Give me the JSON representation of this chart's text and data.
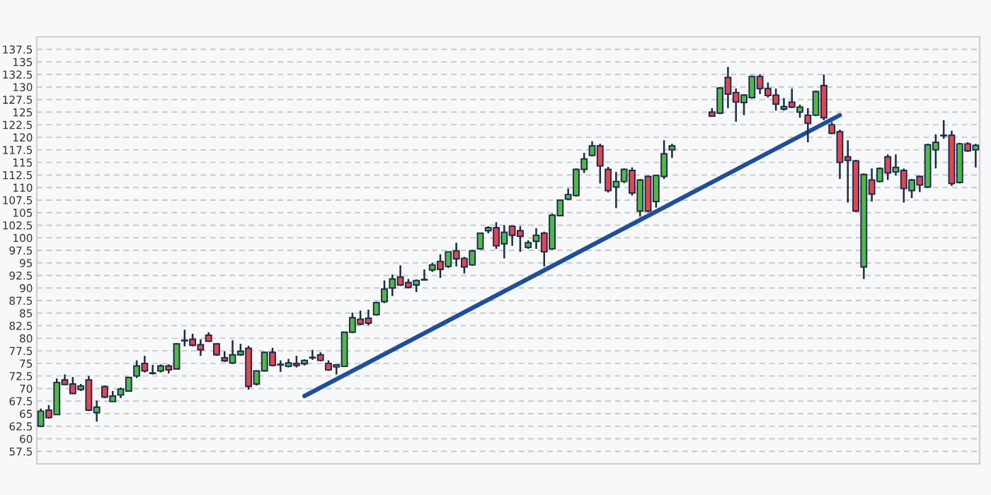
{
  "chart_data": {
    "type": "candlestick",
    "categories": [
      null,
      null,
      null,
      null,
      null,
      null,
      null,
      null,
      null,
      null,
      null,
      null,
      null,
      null,
      null,
      null,
      null,
      null,
      null,
      null,
      null,
      null,
      null,
      null,
      null,
      null,
      null,
      null,
      null,
      null,
      null,
      null,
      null,
      null,
      null,
      null,
      null,
      null,
      null,
      null,
      null,
      null,
      null,
      null,
      null,
      null,
      null,
      null,
      null,
      null,
      null,
      null,
      null,
      null,
      null,
      null,
      null,
      null,
      null,
      null,
      null,
      null,
      null,
      null,
      null,
      null,
      null,
      null,
      null,
      null,
      null,
      null,
      null,
      null,
      null,
      null,
      null,
      null,
      null,
      null,
      null,
      null,
      null,
      null,
      null,
      null,
      null,
      null,
      null,
      null,
      null,
      null,
      null,
      null,
      null,
      null,
      null,
      null,
      null,
      null,
      null,
      null,
      null,
      null,
      null,
      null,
      null,
      null,
      null,
      null,
      null,
      null,
      null,
      null,
      null,
      null,
      null,
      null
    ],
    "ohlc": [
      [
        62.5,
        66,
        62.3,
        65.5
      ],
      [
        65.7,
        66.7,
        64.0,
        64.2
      ],
      [
        64.8,
        72,
        64.8,
        71.2
      ],
      [
        71.7,
        72.8,
        70.8,
        70.8
      ],
      [
        70.9,
        72.3,
        68.9,
        69.0
      ],
      [
        69.8,
        70.9,
        69.5,
        70.5
      ],
      [
        71.7,
        72.5,
        65.5,
        65.7
      ],
      [
        65.2,
        67.6,
        63.4,
        66.3
      ],
      [
        70.4,
        70.6,
        68.1,
        68.3
      ],
      [
        67.4,
        69.5,
        67.4,
        68.5
      ],
      [
        68.7,
        70.2,
        68.1,
        69.9
      ],
      [
        69.5,
        72.3,
        69.4,
        72.2
      ],
      [
        72.5,
        75.6,
        72.1,
        74.5
      ],
      [
        75.0,
        76.5,
        73.2,
        73.5
      ],
      [
        73.1,
        74.7,
        72.8,
        73.0
      ],
      [
        73.5,
        74.8,
        73.2,
        74.5
      ],
      [
        74.5,
        74.8,
        73.0,
        73.7
      ],
      [
        73.9,
        79.0,
        73.8,
        78.9
      ],
      [
        79.5,
        81.7,
        78.4,
        79.6
      ],
      [
        79.8,
        80.9,
        78.4,
        78.6
      ],
      [
        78.7,
        79.8,
        76.5,
        77.7
      ],
      [
        80.6,
        81.2,
        79.3,
        79.4
      ],
      [
        78.9,
        79.0,
        76.5,
        76.7
      ],
      [
        76.1,
        77.4,
        75.3,
        75.5
      ],
      [
        75.1,
        79.6,
        74.9,
        76.7
      ],
      [
        76.7,
        78.9,
        76.5,
        77.4
      ],
      [
        78.0,
        78.5,
        69.8,
        70.4
      ],
      [
        70.9,
        73.6,
        70.6,
        73.5
      ],
      [
        73.5,
        77.3,
        73.4,
        77.2
      ],
      [
        77.2,
        78.1,
        74.4,
        74.6
      ],
      [
        74.8,
        75.6,
        73.3,
        74.7
      ],
      [
        74.4,
        75.9,
        74.2,
        75.1
      ],
      [
        75.0,
        76.5,
        74.2,
        74.6
      ],
      [
        74.9,
        75.8,
        74.6,
        75.6
      ],
      [
        76.1,
        77.7,
        75.7,
        76.2
      ],
      [
        76.7,
        77.2,
        75.4,
        75.6
      ],
      [
        75.0,
        75.6,
        73.5,
        73.7
      ],
      [
        74.3,
        74.8,
        72.8,
        74.7
      ],
      [
        74.4,
        81.3,
        74.3,
        81.2
      ],
      [
        81.2,
        85.1,
        81.0,
        84.1
      ],
      [
        83.8,
        85.5,
        82.6,
        82.8
      ],
      [
        84.0,
        85.7,
        82.6,
        83.0
      ],
      [
        84.7,
        87.3,
        84.5,
        87.1
      ],
      [
        87.3,
        91.5,
        87.0,
        89.8
      ],
      [
        90.0,
        92.7,
        88.4,
        91.8
      ],
      [
        92.2,
        94.5,
        90.4,
        90.6
      ],
      [
        91.1,
        91.8,
        89.9,
        90.1
      ],
      [
        90.6,
        91.7,
        89.2,
        91.5
      ],
      [
        91.6,
        93.7,
        91.5,
        91.7
      ],
      [
        93.6,
        95.0,
        93.2,
        94.6
      ],
      [
        95.3,
        96.7,
        92.0,
        93.7
      ],
      [
        94.3,
        97.2,
        94.0,
        97.2
      ],
      [
        97.4,
        99.0,
        94.3,
        95.8
      ],
      [
        95.9,
        96.2,
        92.9,
        94.2
      ],
      [
        94.6,
        97.6,
        94.4,
        97.4
      ],
      [
        97.8,
        101.0,
        97.6,
        100.9
      ],
      [
        101.4,
        102.3,
        100.9,
        102.0
      ],
      [
        102.0,
        103.1,
        97.8,
        98.4
      ],
      [
        98.8,
        102.5,
        95.9,
        101.1
      ],
      [
        102.3,
        102.5,
        98.4,
        100.5
      ],
      [
        101.4,
        102.3,
        97.2,
        100.3
      ],
      [
        98.1,
        99.5,
        97.8,
        99.0
      ],
      [
        99.3,
        101.9,
        97.8,
        100.5
      ],
      [
        100.9,
        101.2,
        94.3,
        97.2
      ],
      [
        97.8,
        104.8,
        97.6,
        104.5
      ],
      [
        104.4,
        107.6,
        104.3,
        107.5
      ],
      [
        107.7,
        109.8,
        107.5,
        108.6
      ],
      [
        108.4,
        113.8,
        108.2,
        113.6
      ],
      [
        113.6,
        116.9,
        112.9,
        115.7
      ],
      [
        116.4,
        119.2,
        116.2,
        118.3
      ],
      [
        118.3,
        118.7,
        110.8,
        114.3
      ],
      [
        113.6,
        114.1,
        109.0,
        109.4
      ],
      [
        110.1,
        113.1,
        105.9,
        111.2
      ],
      [
        111.2,
        113.8,
        110.9,
        113.6
      ],
      [
        113.4,
        114.0,
        108.4,
        108.9
      ],
      [
        105.3,
        111.7,
        104.2,
        111.5
      ],
      [
        112.2,
        112.4,
        105.1,
        105.3
      ],
      [
        107.2,
        112.5,
        106.0,
        112.4
      ],
      [
        112.2,
        119.4,
        111.7,
        116.7
      ],
      [
        117.5,
        118.7,
        115.9,
        118.3
      ],
      null,
      null,
      null,
      null,
      [
        125.0,
        125.8,
        124.1,
        124.2
      ],
      [
        124.8,
        130.0,
        124.6,
        129.8
      ],
      [
        131.9,
        134.0,
        125.8,
        128.6
      ],
      [
        128.9,
        129.7,
        123.1,
        127.0
      ],
      [
        126.9,
        128.6,
        124.4,
        128.4
      ],
      [
        127.9,
        132.3,
        127.7,
        132.1
      ],
      [
        132.1,
        132.5,
        128.6,
        129.7
      ],
      [
        129.7,
        130.9,
        127.9,
        128.3
      ],
      [
        128.4,
        129.7,
        125.3,
        126.6
      ],
      [
        125.6,
        127.8,
        125.3,
        126.1
      ],
      [
        127.0,
        129.7,
        125.8,
        126.0
      ],
      [
        125.0,
        126.5,
        123.9,
        126.0
      ],
      [
        124.4,
        125.8,
        119.0,
        122.8
      ],
      [
        124.4,
        129.3,
        124.2,
        129.1
      ],
      [
        130.3,
        132.5,
        123.4,
        123.9
      ],
      [
        122.5,
        123.0,
        120.6,
        120.8
      ],
      [
        121.1,
        121.5,
        111.7,
        115.0
      ],
      [
        116.1,
        119.4,
        107.0,
        115.4
      ],
      [
        115.3,
        115.5,
        105.1,
        105.3
      ],
      [
        94.2,
        112.8,
        91.8,
        112.6
      ],
      [
        111.5,
        113.8,
        107.2,
        108.7
      ],
      [
        111.2,
        114.0,
        111.0,
        113.8
      ],
      [
        116.1,
        116.6,
        111.5,
        112.9
      ],
      [
        113.1,
        116.6,
        112.4,
        114.0
      ],
      [
        113.4,
        113.8,
        107.0,
        109.8
      ],
      [
        109.4,
        111.7,
        107.9,
        111.5
      ],
      [
        112.2,
        112.4,
        109.1,
        110.5
      ],
      [
        110.1,
        118.7,
        109.9,
        118.5
      ],
      [
        117.5,
        120.6,
        113.8,
        119.0
      ],
      [
        120.3,
        123.4,
        119.7,
        120.4
      ],
      [
        120.4,
        121.3,
        110.3,
        110.8
      ],
      [
        111.0,
        118.9,
        110.8,
        118.7
      ],
      [
        118.7,
        119.0,
        117.1,
        117.3
      ],
      [
        117.5,
        118.7,
        114.0,
        118.4
      ]
    ],
    "colors": [
      "#52b848",
      "#e2474f",
      "#52b848",
      "#e2474f",
      "#e2474f",
      "#52b848",
      "#e2474f",
      "#52b848",
      "#e2474f",
      "#52b848",
      "#52b848",
      "#52b848",
      "#52b848",
      "#e2474f",
      "#e2474f",
      "#52b848",
      "#e2474f",
      "#52b848",
      "#52b848",
      "#e2474f",
      "#e2474f",
      "#e2474f",
      "#e2474f",
      "#e2474f",
      "#52b848",
      "#52b848",
      "#e2474f",
      "#52b848",
      "#52b848",
      "#e2474f",
      "#e2474f",
      "#52b848",
      "#e2474f",
      "#52b848",
      "#52b848",
      "#e2474f",
      "#e2474f",
      "#52b848",
      "#52b848",
      "#52b848",
      "#e2474f",
      "#e2474f",
      "#52b848",
      "#52b848",
      "#52b848",
      "#e2474f",
      "#e2474f",
      "#52b848",
      "#52b848",
      "#52b848",
      "#e2474f",
      "#52b848",
      "#e2474f",
      "#e2474f",
      "#52b848",
      "#52b848",
      "#52b848",
      "#e2474f",
      "#52b848",
      "#e2474f",
      "#e2474f",
      "#52b848",
      "#52b848",
      "#e2474f",
      "#52b848",
      "#52b848",
      "#52b848",
      "#52b848",
      "#52b848",
      "#52b848",
      "#e2474f",
      "#e2474f",
      "#52b848",
      "#52b848",
      "#e2474f",
      "#52b848",
      "#e2474f",
      "#52b848",
      "#52b848",
      "#52b848",
      null,
      null,
      null,
      null,
      "#e2474f",
      "#52b848",
      "#e2474f",
      "#e2474f",
      "#52b848",
      "#52b848",
      "#e2474f",
      "#e2474f",
      "#e2474f",
      "#52b848",
      "#e2474f",
      "#52b848",
      "#e2474f",
      "#52b848",
      "#e2474f",
      "#e2474f",
      "#e2474f",
      "#e2474f",
      "#e2474f",
      "#52b848",
      "#e2474f",
      "#52b848",
      "#e2474f",
      "#52b848",
      "#e2474f",
      "#52b848",
      "#e2474f",
      "#52b848",
      "#52b848",
      "#52b848",
      "#e2474f",
      "#52b848",
      "#e2474f",
      "#52b848"
    ],
    "series": [
      {
        "type": "line",
        "values": [
          null,
          null,
          null,
          null,
          null,
          null,
          null,
          null,
          null,
          null,
          null,
          null,
          null,
          null,
          null,
          null,
          null,
          null,
          null,
          null,
          null,
          null,
          null,
          null,
          null,
          null,
          null,
          null,
          null,
          null,
          null,
          null,
          null,
          68.5,
          null,
          null,
          null,
          null,
          null,
          null,
          null,
          null,
          null,
          null,
          null,
          null,
          null,
          null,
          null,
          null,
          null,
          null,
          null,
          null,
          null,
          null,
          null,
          null,
          null,
          null,
          null,
          null,
          null,
          null,
          null,
          null,
          null,
          null,
          null,
          null,
          null,
          null,
          null,
          null,
          null,
          null,
          null,
          null,
          null,
          null,
          null,
          null,
          null,
          null,
          null,
          null,
          null,
          null,
          null,
          null,
          null,
          null,
          null,
          null,
          null,
          null,
          null,
          null,
          null,
          null,
          124.4,
          null,
          null,
          null,
          null,
          null,
          null,
          null,
          null,
          null,
          null,
          null,
          null,
          null,
          null,
          null,
          null,
          null
        ],
        "color": "#1f4e9c"
      }
    ],
    "ylim": [
      55,
      140
    ],
    "yticks": [
      57.5,
      60,
      62.5,
      65,
      67.5,
      70,
      72.5,
      75,
      77.5,
      80,
      82.5,
      85,
      87.5,
      90,
      92.5,
      95,
      97.5,
      100,
      102.5,
      105,
      107.5,
      110,
      112.5,
      115,
      117.5,
      120,
      122.5,
      125,
      127.5,
      130,
      132.5,
      135,
      137.5,
      {
        "value": 140,
        "label": null
      }
    ],
    "grid": "y",
    "tick_labels": "y"
  }
}
